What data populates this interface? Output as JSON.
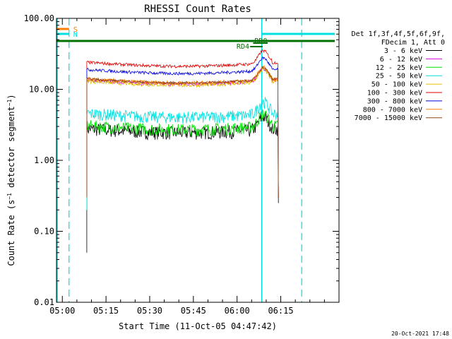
{
  "chart_data": {
    "type": "line",
    "title": "RHESSI Count Rates",
    "xlabel": "Start Time (11-Oct-05 04:47:42)",
    "ylabel": "Count Rate (s⁻¹ detector segment⁻¹)",
    "yscale": "log",
    "ylim": [
      0.01,
      100
    ],
    "xlim_minutes": [
      -2,
      95
    ],
    "y_tick_labels": [
      "100.00",
      "10.00",
      "1.00",
      "0.10",
      "0.01"
    ],
    "y_tick_values": [
      100,
      10,
      1,
      0.1,
      0.01
    ],
    "x_tick_labels": [
      "05:00",
      "05:15",
      "05:30",
      "05:45",
      "06:00",
      "06:15"
    ],
    "x_tick_minutes": [
      0,
      15,
      30,
      45,
      60,
      75
    ],
    "grid": false,
    "legend_position": "right",
    "legend_header": [
      "Det 1f,3f,4f,5f,6f,9f,",
      "FDecim 1, Att 0"
    ],
    "timestamp": "20-Oct-2021 17:48",
    "series": [
      {
        "name": "3 - 6 keV",
        "color": "#000000",
        "level": 2.8,
        "noise": 0.22,
        "d_start": 0.05,
        "d_end": 0.25
      },
      {
        "name": "6 - 12 keV",
        "color": "#e000e0",
        "level": 13.5,
        "noise": 0.06,
        "d_start": 0.3,
        "d_end": 0.3
      },
      {
        "name": "12 - 25 keV",
        "color": "#00e000",
        "level": 3.1,
        "noise": 0.2,
        "d_start": 0.2,
        "d_end": 0.3
      },
      {
        "name": "25 - 50 keV",
        "color": "#00e0e0",
        "level": 4.6,
        "noise": 0.2,
        "d_start": 0.2,
        "d_end": 0.4
      },
      {
        "name": "50 - 100 keV",
        "color": "#e0c000",
        "level": 13.0,
        "noise": 0.06,
        "d_start": 0.3,
        "d_end": 0.3
      },
      {
        "name": "100 - 300 keV",
        "color": "#e00000",
        "level": 24.0,
        "noise": 0.05,
        "d_start": 0.3,
        "d_end": 0.3
      },
      {
        "name": "300 - 800 keV",
        "color": "#0000e0",
        "level": 19.0,
        "noise": 0.05,
        "d_start": 0.3,
        "d_end": 0.3
      },
      {
        "name": "800 - 7000 keV",
        "color": "#ff8000",
        "level": 14.0,
        "noise": 0.06,
        "d_start": 0.3,
        "d_end": 0.3
      },
      {
        "name": "7000 - 15000 keV",
        "color": "#8b4513",
        "level": 14.0,
        "noise": 0.04,
        "d_start": 0.3,
        "d_end": 0.3
      }
    ],
    "annotations": [
      {
        "text": "S",
        "color": "#ff8000"
      },
      {
        "text": "N",
        "color": "#00e0e0"
      },
      {
        "text": "RD4",
        "color": "#007000"
      },
      {
        "text": "RD0",
        "color": "#007000"
      }
    ]
  }
}
